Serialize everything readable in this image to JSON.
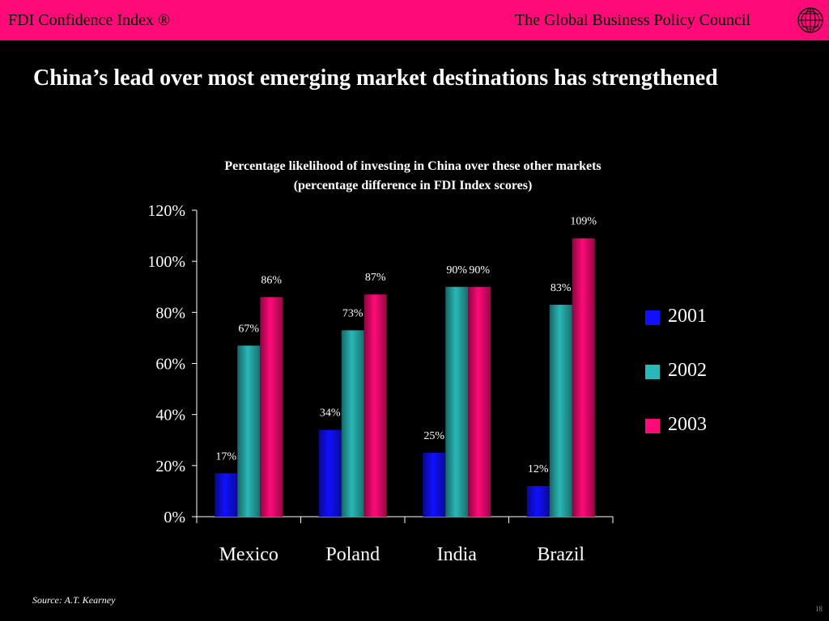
{
  "header": {
    "left_text": "FDI Confidence Index ®",
    "right_text": "The Global Business Policy Council"
  },
  "slide": {
    "title": "China’s lead over most emerging market destinations has strengthened",
    "source": "Source: A.T. Kearney",
    "page_number": "18"
  },
  "colors": {
    "header_bar": "#ff0a78",
    "background": "#000000"
  },
  "chart_data": {
    "type": "bar",
    "title": "Percentage likelihood of investing in China over these other markets",
    "subtitle": "(percentage difference in FDI Index scores)",
    "categories": [
      "Mexico",
      "Poland",
      "India",
      "Brazil"
    ],
    "series": [
      {
        "name": "2001",
        "values": [
          17,
          34,
          25,
          12
        ],
        "labels": [
          "17%",
          "34%",
          "25%",
          "12%"
        ],
        "color": "#1010ff"
      },
      {
        "name": "2002",
        "values": [
          67,
          73,
          90,
          83
        ],
        "labels": [
          "67%",
          "73%",
          "90%",
          "83%"
        ],
        "color": "#2ab7b7"
      },
      {
        "name": "2003",
        "values": [
          86,
          87,
          90,
          109
        ],
        "labels": [
          "86%",
          "87%",
          "90%",
          "109%"
        ],
        "color": "#ff0a78"
      }
    ],
    "yticks": [
      "0%",
      "20%",
      "40%",
      "60%",
      "80%",
      "100%",
      "120%"
    ],
    "ylim": [
      0,
      120
    ],
    "legend_position": "right"
  }
}
